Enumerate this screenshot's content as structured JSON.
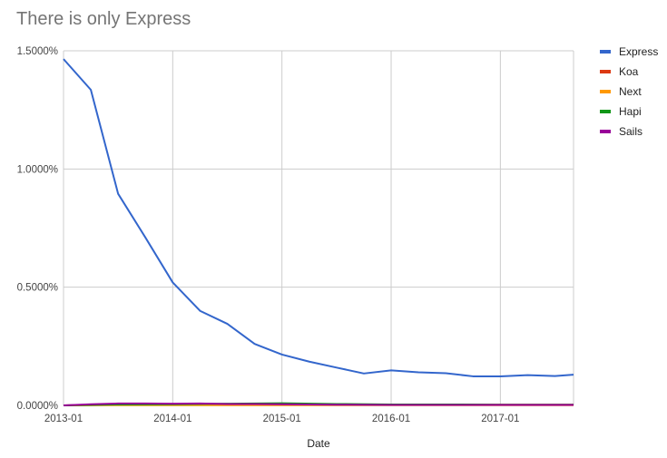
{
  "chart_data": {
    "type": "line",
    "title": "There is only Express",
    "xlabel": "Date",
    "ylabel": "",
    "ylim": [
      0,
      1.5
    ],
    "grid": true,
    "legend_position": "right",
    "y_ticks": [
      "0.0000%",
      "0.5000%",
      "1.0000%",
      "1.5000%"
    ],
    "y_tick_values": [
      0,
      0.5,
      1.0,
      1.5
    ],
    "x_ticks": [
      "2013-01",
      "2014-01",
      "2015-01",
      "2016-01",
      "2017-01"
    ],
    "x_tick_values": [
      2013.0,
      2014.0,
      2015.0,
      2016.0,
      2017.0
    ],
    "xlim": [
      2013.0,
      2017.67
    ],
    "series": [
      {
        "name": "Express",
        "color": "#3366cc",
        "x": [
          2013.0,
          2013.25,
          2013.5,
          2013.75,
          2014.0,
          2014.25,
          2014.5,
          2014.75,
          2015.0,
          2015.25,
          2015.5,
          2015.75,
          2016.0,
          2016.25,
          2016.5,
          2016.75,
          2017.0,
          2017.25,
          2017.5,
          2017.67
        ],
        "values": [
          1.465,
          1.335,
          0.895,
          0.71,
          0.52,
          0.4,
          0.345,
          0.26,
          0.215,
          0.185,
          0.16,
          0.135,
          0.148,
          0.14,
          0.136,
          0.123,
          0.123,
          0.128,
          0.124,
          0.13
        ]
      },
      {
        "name": "Koa",
        "color": "#dc3912",
        "x": [
          2013.0,
          2013.5,
          2014.0,
          2014.5,
          2015.0,
          2015.5,
          2016.0,
          2016.5,
          2017.0,
          2017.67
        ],
        "values": [
          0.0,
          0.003,
          0.004,
          0.004,
          0.004,
          0.004,
          0.003,
          0.003,
          0.003,
          0.003
        ]
      },
      {
        "name": "Next",
        "color": "#ff9900",
        "x": [
          2013.0,
          2013.5,
          2014.0,
          2014.5,
          2015.0,
          2015.5,
          2016.0,
          2016.5,
          2017.0,
          2017.67
        ],
        "values": [
          0.0,
          0.001,
          0.001,
          0.001,
          0.001,
          0.001,
          0.001,
          0.001,
          0.001,
          0.001
        ]
      },
      {
        "name": "Hapi",
        "color": "#109618",
        "x": [
          2013.0,
          2013.5,
          2014.0,
          2014.5,
          2015.0,
          2015.5,
          2016.0,
          2016.5,
          2017.0,
          2017.67
        ],
        "values": [
          0.0,
          0.004,
          0.005,
          0.007,
          0.009,
          0.006,
          0.004,
          0.004,
          0.003,
          0.003
        ]
      },
      {
        "name": "Sails",
        "color": "#990099",
        "x": [
          2013.0,
          2013.25,
          2013.5,
          2013.75,
          2014.0,
          2014.25,
          2014.5,
          2014.75,
          2015.0,
          2015.5,
          2016.0,
          2016.5,
          2017.0,
          2017.67
        ],
        "values": [
          0.0,
          0.005,
          0.008,
          0.008,
          0.007,
          0.008,
          0.006,
          0.006,
          0.005,
          0.003,
          0.002,
          0.002,
          0.002,
          0.002
        ]
      }
    ]
  }
}
